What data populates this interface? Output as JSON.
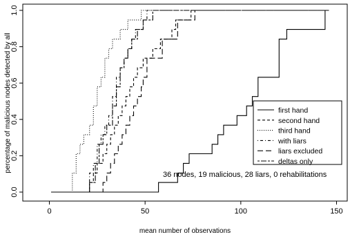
{
  "chart_data": {
    "type": "line",
    "title": "",
    "xlabel": "mean number of observations",
    "ylabel": "percentage of malicious nodes detected by all",
    "xlim": [
      0,
      150
    ],
    "ylim": [
      0,
      1.0
    ],
    "x_ticks": [
      0,
      50,
      100,
      150
    ],
    "y_ticks": [
      0.0,
      0.2,
      0.4,
      0.6,
      0.8,
      1.0
    ],
    "x_tick_labels": [
      "0",
      "50",
      "100",
      "150"
    ],
    "y_tick_labels": [
      "0.0",
      "0.2",
      "0.4",
      "0.6",
      "0.8",
      "1.0"
    ],
    "grid": false,
    "legend_position": "bottom-right",
    "annotation": "36 nodes, 19 malicious, 28 liars, 0 rehabilitations",
    "series": [
      {
        "name": "first hand",
        "line_style": "solid",
        "x": [
          1,
          57,
          57,
          67,
          67,
          70,
          70,
          73,
          73,
          76,
          76,
          85,
          85,
          88,
          88,
          91,
          91,
          98,
          98,
          103,
          103,
          106,
          106,
          109,
          109,
          111,
          111,
          120,
          120,
          124,
          124,
          127,
          127,
          144,
          144,
          146
        ],
        "y": [
          0.0,
          0.0,
          0.053,
          0.053,
          0.105,
          0.105,
          0.158,
          0.158,
          0.211,
          0.211,
          0.211,
          0.211,
          0.263,
          0.263,
          0.316,
          0.316,
          0.368,
          0.368,
          0.421,
          0.421,
          0.474,
          0.474,
          0.526,
          0.526,
          0.632,
          0.632,
          0.632,
          0.632,
          0.842,
          0.842,
          0.895,
          0.895,
          0.895,
          0.895,
          1.0,
          1.0
        ]
      },
      {
        "name": "second hand",
        "line_style": "dashed",
        "x": [
          1,
          21,
          21,
          23,
          23,
          25,
          25,
          28,
          28,
          30,
          30,
          32,
          32,
          34,
          34,
          36,
          36,
          38,
          38,
          40,
          40,
          42,
          42,
          44,
          44,
          46,
          46,
          49,
          49,
          54,
          54,
          58,
          58,
          64,
          64,
          66,
          66,
          70,
          70,
          74,
          74,
          81,
          81,
          146
        ],
        "y": [
          0.0,
          0.0,
          0.053,
          0.053,
          0.105,
          0.105,
          0.158,
          0.158,
          0.211,
          0.211,
          0.263,
          0.263,
          0.316,
          0.316,
          0.368,
          0.368,
          0.421,
          0.421,
          0.474,
          0.474,
          0.526,
          0.526,
          0.579,
          0.579,
          0.632,
          0.632,
          0.684,
          0.684,
          0.737,
          0.737,
          0.789,
          0.789,
          0.842,
          0.842,
          0.895,
          0.895,
          0.947,
          0.947,
          0.947,
          0.947,
          1.0,
          1.0,
          1.0,
          1.0
        ]
      },
      {
        "name": "third hand",
        "line_style": "dotted",
        "x": [
          1,
          12,
          12,
          14,
          14,
          16,
          16,
          18,
          18,
          21,
          21,
          23,
          23,
          25,
          25,
          27,
          27,
          29,
          29,
          31,
          31,
          33,
          33,
          35,
          35,
          37,
          37,
          39,
          39,
          41,
          41,
          44,
          44,
          48,
          48,
          146
        ],
        "y": [
          0.0,
          0.0,
          0.105,
          0.105,
          0.211,
          0.211,
          0.263,
          0.263,
          0.316,
          0.316,
          0.368,
          0.368,
          0.474,
          0.474,
          0.579,
          0.579,
          0.632,
          0.632,
          0.737,
          0.737,
          0.789,
          0.789,
          0.842,
          0.842,
          0.842,
          0.842,
          0.895,
          0.895,
          0.895,
          0.895,
          0.947,
          0.947,
          0.947,
          0.947,
          1.0,
          1.0
        ]
      },
      {
        "name": "with liars",
        "line_style": "dashdot",
        "x": [
          1,
          21,
          21,
          23,
          23,
          25,
          25,
          27,
          27,
          29,
          29,
          31,
          31,
          33,
          33,
          35,
          35,
          37,
          37,
          39,
          39,
          41,
          41,
          43,
          43,
          45,
          45,
          49,
          49,
          51,
          51,
          54,
          54,
          57,
          57,
          61,
          61,
          64,
          64,
          69,
          69,
          72,
          72,
          76,
          76,
          80,
          80,
          85,
          85,
          92,
          92,
          96,
          96,
          102,
          102,
          110,
          110,
          121,
          121,
          124,
          124,
          127,
          127,
          144,
          144,
          146
        ],
        "y": [
          0.0,
          0.0,
          0.105,
          0.105,
          0.158,
          0.158,
          0.263,
          0.263,
          0.316,
          0.316,
          0.368,
          0.368,
          0.421,
          0.421,
          0.526,
          0.526,
          0.632,
          0.632,
          0.684,
          0.684,
          0.737,
          0.737,
          0.789,
          0.789,
          0.842,
          0.842,
          0.895,
          0.895,
          0.947,
          0.947,
          1.0,
          1.0,
          1.0,
          1.0,
          1.0,
          1.0,
          1.0,
          1.0,
          1.0,
          1.0,
          1.0,
          1.0,
          1.0,
          1.0,
          1.0,
          1.0,
          1.0,
          1.0,
          1.0,
          1.0,
          1.0,
          1.0,
          1.0,
          1.0,
          1.0,
          1.0,
          1.0,
          1.0,
          1.0,
          1.0,
          1.0,
          1.0,
          1.0,
          1.0,
          1.0,
          1.0
        ]
      },
      {
        "name": "liars excluded",
        "line_style": "longdash",
        "x": [
          1,
          28,
          28,
          30,
          30,
          32,
          32,
          34,
          34,
          36,
          36,
          38,
          38,
          40,
          40,
          42,
          42,
          44,
          44,
          46,
          46,
          48,
          48,
          49,
          49,
          51,
          51,
          54,
          54,
          59,
          59,
          63,
          63,
          67,
          67,
          69,
          69,
          73,
          73,
          76,
          76,
          80,
          80,
          146
        ],
        "y": [
          0.0,
          0.0,
          0.053,
          0.053,
          0.105,
          0.105,
          0.158,
          0.158,
          0.211,
          0.211,
          0.263,
          0.263,
          0.316,
          0.316,
          0.368,
          0.368,
          0.421,
          0.421,
          0.474,
          0.474,
          0.526,
          0.526,
          0.579,
          0.579,
          0.632,
          0.632,
          0.737,
          0.737,
          0.737,
          0.737,
          0.842,
          0.842,
          0.842,
          0.842,
          0.947,
          0.947,
          0.947,
          0.947,
          0.947,
          0.947,
          1.0,
          1.0,
          1.0,
          1.0
        ]
      },
      {
        "name": "deltas only",
        "line_style": "twodash",
        "x": [
          1,
          21,
          21,
          24,
          24,
          26,
          26,
          28,
          28,
          30,
          30,
          33,
          33,
          35,
          35,
          37,
          37,
          39,
          39,
          41,
          41,
          43,
          43,
          46,
          46,
          49,
          49,
          51,
          51,
          54,
          54,
          57,
          57,
          146
        ],
        "y": [
          0.0,
          0.0,
          0.053,
          0.053,
          0.158,
          0.158,
          0.263,
          0.263,
          0.316,
          0.316,
          0.368,
          0.368,
          0.474,
          0.474,
          0.579,
          0.579,
          0.684,
          0.684,
          0.737,
          0.737,
          0.789,
          0.789,
          0.842,
          0.842,
          0.895,
          0.895,
          0.947,
          0.947,
          0.947,
          0.947,
          1.0,
          1.0,
          1.0,
          1.0
        ]
      }
    ]
  }
}
